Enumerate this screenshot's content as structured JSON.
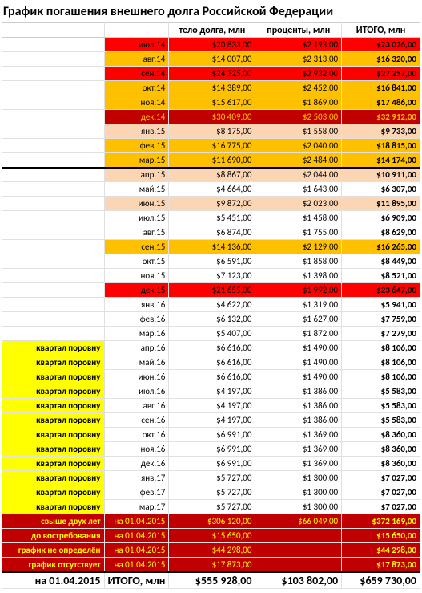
{
  "title": "График погашения внешнего долга Российской Федерации",
  "headers": {
    "principal": "тело долга, млн",
    "interest": "проценты, млн",
    "total": "ИТОГО, млн"
  },
  "colors": {
    "red": "#ff0000",
    "darkred": "#c00000",
    "orange": "#ffc000",
    "lightorange": "#fcd5b4",
    "yellow": "#ffff00",
    "white": "#ffffff",
    "black": "#000000"
  },
  "rows": [
    {
      "a": "",
      "b": "июл.14",
      "c": "$20 833,00",
      "d": "$2 193,00",
      "e": "$23 026,00",
      "bgA": "#ffffff",
      "bgB": "#ff0000",
      "bgC": "#ff0000",
      "bgD": "#ff0000",
      "bgE": "#ff0000",
      "txtA": "#000",
      "txtB": "#000",
      "txtC": "#000",
      "txtD": "#000",
      "txtE": "#000"
    },
    {
      "a": "",
      "b": "авг.14",
      "c": "$14 007,00",
      "d": "$2 313,00",
      "e": "$16 320,00",
      "bgA": "#ffffff",
      "bgB": "#ffc000",
      "bgC": "#ffc000",
      "bgD": "#ffc000",
      "bgE": "#ffc000",
      "txtA": "#000",
      "txtB": "#000",
      "txtC": "#000",
      "txtD": "#000",
      "txtE": "#000"
    },
    {
      "a": "",
      "b": "сен.14",
      "c": "$24 325,00",
      "d": "$2 932,00",
      "e": "$27 257,00",
      "bgA": "#ffffff",
      "bgB": "#ff0000",
      "bgC": "#ff0000",
      "bgD": "#ff0000",
      "bgE": "#ff0000",
      "txtA": "#000",
      "txtB": "#000",
      "txtC": "#000",
      "txtD": "#000",
      "txtE": "#000"
    },
    {
      "a": "",
      "b": "окт.14",
      "c": "$14 389,00",
      "d": "$2 452,00",
      "e": "$16 841,00",
      "bgA": "#ffffff",
      "bgB": "#ffc000",
      "bgC": "#ffc000",
      "bgD": "#ffc000",
      "bgE": "#ffc000",
      "txtA": "#000",
      "txtB": "#000",
      "txtC": "#000",
      "txtD": "#000",
      "txtE": "#000"
    },
    {
      "a": "",
      "b": "ноя.14",
      "c": "$15 617,00",
      "d": "$1 869,00",
      "e": "$17 486,00",
      "bgA": "#ffffff",
      "bgB": "#ffc000",
      "bgC": "#ffc000",
      "bgD": "#ffc000",
      "bgE": "#ffc000",
      "txtA": "#000",
      "txtB": "#000",
      "txtC": "#000",
      "txtD": "#000",
      "txtE": "#000"
    },
    {
      "a": "",
      "b": "дек.14",
      "c": "$30 409,00",
      "d": "$2 503,00",
      "e": "$32 912,00",
      "bgA": "#ffffff",
      "bgB": "#c00000",
      "bgC": "#c00000",
      "bgD": "#c00000",
      "bgE": "#c00000",
      "txtA": "#000",
      "txtB": "#ffc000",
      "txtC": "#ffc000",
      "txtD": "#ffc000",
      "txtE": "#ffc000"
    },
    {
      "a": "",
      "b": "янв.15",
      "c": "$8 175,00",
      "d": "$1 558,00",
      "e": "$9 733,00",
      "bgA": "#ffffff",
      "bgB": "#fcd5b4",
      "bgC": "#fcd5b4",
      "bgD": "#fcd5b4",
      "bgE": "#fcd5b4",
      "txtA": "#000",
      "txtB": "#000",
      "txtC": "#000",
      "txtD": "#000",
      "txtE": "#000"
    },
    {
      "a": "",
      "b": "фев.15",
      "c": "$16 775,00",
      "d": "$2 040,00",
      "e": "$18 815,00",
      "bgA": "#ffffff",
      "bgB": "#ffc000",
      "bgC": "#ffc000",
      "bgD": "#ffc000",
      "bgE": "#ffc000",
      "txtA": "#000",
      "txtB": "#000",
      "txtC": "#000",
      "txtD": "#000",
      "txtE": "#000"
    },
    {
      "a": "",
      "b": "мар.15",
      "c": "$11 690,00",
      "d": "$2 484,00",
      "e": "$14 174,00",
      "bgA": "#ffffff",
      "bgB": "#ffc000",
      "bgC": "#ffc000",
      "bgD": "#ffc000",
      "bgE": "#ffc000",
      "txtA": "#000",
      "txtB": "#000",
      "txtC": "#000",
      "txtD": "#000",
      "txtE": "#000",
      "sep": true
    },
    {
      "a": "",
      "b": "апр.15",
      "c": "$8 867,00",
      "d": "$2 044,00",
      "e": "$10 911,00",
      "bgA": "#ffffff",
      "bgB": "#fcd5b4",
      "bgC": "#fcd5b4",
      "bgD": "#fcd5b4",
      "bgE": "#fcd5b4",
      "txtA": "#000",
      "txtB": "#000",
      "txtC": "#000",
      "txtD": "#000",
      "txtE": "#000"
    },
    {
      "a": "",
      "b": "май.15",
      "c": "$4 664,00",
      "d": "$1 643,00",
      "e": "$6 307,00",
      "bgA": "#ffffff",
      "bgB": "#ffffff",
      "bgC": "#ffffff",
      "bgD": "#ffffff",
      "bgE": "#ffffff",
      "txtA": "#000",
      "txtB": "#000",
      "txtC": "#000",
      "txtD": "#000",
      "txtE": "#000"
    },
    {
      "a": "",
      "b": "июн.15",
      "c": "$9 872,00",
      "d": "$2 023,00",
      "e": "$11 895,00",
      "bgA": "#ffffff",
      "bgB": "#fcd5b4",
      "bgC": "#fcd5b4",
      "bgD": "#fcd5b4",
      "bgE": "#fcd5b4",
      "txtA": "#000",
      "txtB": "#000",
      "txtC": "#000",
      "txtD": "#000",
      "txtE": "#000"
    },
    {
      "a": "",
      "b": "июл.15",
      "c": "$5 451,00",
      "d": "$1 458,00",
      "e": "$6 909,00",
      "bgA": "#ffffff",
      "bgB": "#ffffff",
      "bgC": "#ffffff",
      "bgD": "#ffffff",
      "bgE": "#ffffff",
      "txtA": "#000",
      "txtB": "#000",
      "txtC": "#000",
      "txtD": "#000",
      "txtE": "#000"
    },
    {
      "a": "",
      "b": "авг.15",
      "c": "$6 874,00",
      "d": "$1 755,00",
      "e": "$8 629,00",
      "bgA": "#ffffff",
      "bgB": "#ffffff",
      "bgC": "#ffffff",
      "bgD": "#ffffff",
      "bgE": "#ffffff",
      "txtA": "#000",
      "txtB": "#000",
      "txtC": "#000",
      "txtD": "#000",
      "txtE": "#000"
    },
    {
      "a": "",
      "b": "сен.15",
      "c": "$14 136,00",
      "d": "$2 129,00",
      "e": "$16 265,00",
      "bgA": "#ffffff",
      "bgB": "#ffc000",
      "bgC": "#ffc000",
      "bgD": "#ffc000",
      "bgE": "#ffc000",
      "txtA": "#000",
      "txtB": "#000",
      "txtC": "#000",
      "txtD": "#000",
      "txtE": "#000"
    },
    {
      "a": "",
      "b": "окт.15",
      "c": "$6 591,00",
      "d": "$1 858,00",
      "e": "$8 449,00",
      "bgA": "#ffffff",
      "bgB": "#ffffff",
      "bgC": "#ffffff",
      "bgD": "#ffffff",
      "bgE": "#ffffff",
      "txtA": "#000",
      "txtB": "#000",
      "txtC": "#000",
      "txtD": "#000",
      "txtE": "#000"
    },
    {
      "a": "",
      "b": "ноя.15",
      "c": "$7 123,00",
      "d": "$1 398,00",
      "e": "$8 521,00",
      "bgA": "#ffffff",
      "bgB": "#ffffff",
      "bgC": "#ffffff",
      "bgD": "#ffffff",
      "bgE": "#ffffff",
      "txtA": "#000",
      "txtB": "#000",
      "txtC": "#000",
      "txtD": "#000",
      "txtE": "#000"
    },
    {
      "a": "",
      "b": "дек.15",
      "c": "$21 655,00",
      "d": "$1 992,00",
      "e": "$23 647,00",
      "bgA": "#ffffff",
      "bgB": "#ff0000",
      "bgC": "#ff0000",
      "bgD": "#ff0000",
      "bgE": "#ff0000",
      "txtA": "#000",
      "txtB": "#000",
      "txtC": "#000",
      "txtD": "#000",
      "txtE": "#000"
    },
    {
      "a": "",
      "b": "янв.16",
      "c": "$4 622,00",
      "d": "$1 319,00",
      "e": "$5 941,00",
      "bgA": "#ffffff",
      "bgB": "#ffffff",
      "bgC": "#ffffff",
      "bgD": "#ffffff",
      "bgE": "#ffffff",
      "txtA": "#000",
      "txtB": "#000",
      "txtC": "#000",
      "txtD": "#000",
      "txtE": "#000"
    },
    {
      "a": "",
      "b": "фев.16",
      "c": "$6 132,00",
      "d": "$1 627,00",
      "e": "$7 759,00",
      "bgA": "#ffffff",
      "bgB": "#ffffff",
      "bgC": "#ffffff",
      "bgD": "#ffffff",
      "bgE": "#ffffff",
      "txtA": "#000",
      "txtB": "#000",
      "txtC": "#000",
      "txtD": "#000",
      "txtE": "#000"
    },
    {
      "a": "",
      "b": "мар.16",
      "c": "$5 407,00",
      "d": "$1 872,00",
      "e": "$7 279,00",
      "bgA": "#ffffff",
      "bgB": "#ffffff",
      "bgC": "#ffffff",
      "bgD": "#ffffff",
      "bgE": "#ffffff",
      "txtA": "#000",
      "txtB": "#000",
      "txtC": "#000",
      "txtD": "#000",
      "txtE": "#000"
    },
    {
      "a": "квартал поровну",
      "b": "апр.16",
      "c": "$6 616,00",
      "d": "$1 490,00",
      "e": "$8 106,00",
      "bgA": "#ffff00",
      "bgB": "#ffffff",
      "bgC": "#ffffff",
      "bgD": "#ffffff",
      "bgE": "#ffffff",
      "txtA": "#000",
      "txtB": "#000",
      "txtC": "#000",
      "txtD": "#000",
      "txtE": "#000"
    },
    {
      "a": "квартал поровну",
      "b": "май.16",
      "c": "$6 616,00",
      "d": "$1 490,00",
      "e": "$8 106,00",
      "bgA": "#ffff00",
      "bgB": "#ffffff",
      "bgC": "#ffffff",
      "bgD": "#ffffff",
      "bgE": "#ffffff",
      "txtA": "#000",
      "txtB": "#000",
      "txtC": "#000",
      "txtD": "#000",
      "txtE": "#000"
    },
    {
      "a": "квартал поровну",
      "b": "июн.16",
      "c": "$6 616,00",
      "d": "$1 490,00",
      "e": "$8 106,00",
      "bgA": "#ffff00",
      "bgB": "#ffffff",
      "bgC": "#ffffff",
      "bgD": "#ffffff",
      "bgE": "#ffffff",
      "txtA": "#000",
      "txtB": "#000",
      "txtC": "#000",
      "txtD": "#000",
      "txtE": "#000"
    },
    {
      "a": "квартал поровну",
      "b": "июл.16",
      "c": "$4 197,00",
      "d": "$1 386,00",
      "e": "$5 583,00",
      "bgA": "#ffff00",
      "bgB": "#ffffff",
      "bgC": "#ffffff",
      "bgD": "#ffffff",
      "bgE": "#ffffff",
      "txtA": "#000",
      "txtB": "#000",
      "txtC": "#000",
      "txtD": "#000",
      "txtE": "#000"
    },
    {
      "a": "квартал поровну",
      "b": "авг.16",
      "c": "$4 197,00",
      "d": "$1 386,00",
      "e": "$5 583,00",
      "bgA": "#ffff00",
      "bgB": "#ffffff",
      "bgC": "#ffffff",
      "bgD": "#ffffff",
      "bgE": "#ffffff",
      "txtA": "#000",
      "txtB": "#000",
      "txtC": "#000",
      "txtD": "#000",
      "txtE": "#000"
    },
    {
      "a": "квартал поровну",
      "b": "сен.16",
      "c": "$4 197,00",
      "d": "$1 386,00",
      "e": "$5 583,00",
      "bgA": "#ffff00",
      "bgB": "#ffffff",
      "bgC": "#ffffff",
      "bgD": "#ffffff",
      "bgE": "#ffffff",
      "txtA": "#000",
      "txtB": "#000",
      "txtC": "#000",
      "txtD": "#000",
      "txtE": "#000"
    },
    {
      "a": "квартал поровну",
      "b": "окт.16",
      "c": "$6 991,00",
      "d": "$1 369,00",
      "e": "$8 360,00",
      "bgA": "#ffff00",
      "bgB": "#ffffff",
      "bgC": "#ffffff",
      "bgD": "#ffffff",
      "bgE": "#ffffff",
      "txtA": "#000",
      "txtB": "#000",
      "txtC": "#000",
      "txtD": "#000",
      "txtE": "#000"
    },
    {
      "a": "квартал поровну",
      "b": "ноя.16",
      "c": "$6 991,00",
      "d": "$1 369,00",
      "e": "$8 360,00",
      "bgA": "#ffff00",
      "bgB": "#ffffff",
      "bgC": "#ffffff",
      "bgD": "#ffffff",
      "bgE": "#ffffff",
      "txtA": "#000",
      "txtB": "#000",
      "txtC": "#000",
      "txtD": "#000",
      "txtE": "#000"
    },
    {
      "a": "квартал поровну",
      "b": "дек.16",
      "c": "$6 991,00",
      "d": "$1 369,00",
      "e": "$8 360,00",
      "bgA": "#ffff00",
      "bgB": "#ffffff",
      "bgC": "#ffffff",
      "bgD": "#ffffff",
      "bgE": "#ffffff",
      "txtA": "#000",
      "txtB": "#000",
      "txtC": "#000",
      "txtD": "#000",
      "txtE": "#000"
    },
    {
      "a": "квартал поровну",
      "b": "янв.17",
      "c": "$5 727,00",
      "d": "$1 300,00",
      "e": "$7 027,00",
      "bgA": "#ffff00",
      "bgB": "#ffffff",
      "bgC": "#ffffff",
      "bgD": "#ffffff",
      "bgE": "#ffffff",
      "txtA": "#000",
      "txtB": "#000",
      "txtC": "#000",
      "txtD": "#000",
      "txtE": "#000"
    },
    {
      "a": "квартал поровну",
      "b": "фев.17",
      "c": "$5 727,00",
      "d": "$1 300,00",
      "e": "$7 027,00",
      "bgA": "#ffff00",
      "bgB": "#ffffff",
      "bgC": "#ffffff",
      "bgD": "#ffffff",
      "bgE": "#ffffff",
      "txtA": "#000",
      "txtB": "#000",
      "txtC": "#000",
      "txtD": "#000",
      "txtE": "#000"
    },
    {
      "a": "квартал поровну",
      "b": "мар.17",
      "c": "$5 727,00",
      "d": "$1 300,00",
      "e": "$7 027,00",
      "bgA": "#ffff00",
      "bgB": "#ffffff",
      "bgC": "#ffffff",
      "bgD": "#ffffff",
      "bgE": "#ffffff",
      "txtA": "#000",
      "txtB": "#000",
      "txtC": "#000",
      "txtD": "#000",
      "txtE": "#000"
    },
    {
      "a": "свыше двух лет",
      "b": "на 01.04.2015",
      "c": "$306 120,00",
      "d": "$66 049,00",
      "e": "$372 169,00",
      "bgA": "#c00000",
      "bgB": "#c00000",
      "bgC": "#c00000",
      "bgD": "#c00000",
      "bgE": "#c00000",
      "txtA": "#ffff00",
      "txtB": "#ffff00",
      "txtC": "#ffff00",
      "txtD": "#ffff00",
      "txtE": "#ffff00"
    },
    {
      "a": "до востребования",
      "b": "на 01.04.2015",
      "c": "$15 650,00",
      "d": "",
      "e": "$15 650,00",
      "bgA": "#c00000",
      "bgB": "#c00000",
      "bgC": "#c00000",
      "bgD": "#c00000",
      "bgE": "#c00000",
      "txtA": "#ffff00",
      "txtB": "#ffff00",
      "txtC": "#ffff00",
      "txtD": "#ffff00",
      "txtE": "#ffff00"
    },
    {
      "a": "график не определён",
      "b": "на 01.04.2015",
      "c": "$44 298,00",
      "d": "",
      "e": "$44 298,00",
      "bgA": "#c00000",
      "bgB": "#c00000",
      "bgC": "#c00000",
      "bgD": "#c00000",
      "bgE": "#c00000",
      "txtA": "#ffff00",
      "txtB": "#ffff00",
      "txtC": "#ffff00",
      "txtD": "#ffff00",
      "txtE": "#ffff00"
    },
    {
      "a": "график отсутствует",
      "b": "на 01.04.2015",
      "c": "$17 873,00",
      "d": "",
      "e": "$17 873,00",
      "bgA": "#c00000",
      "bgB": "#c00000",
      "bgC": "#c00000",
      "bgD": "#c00000",
      "bgE": "#c00000",
      "txtA": "#ffff00",
      "txtB": "#ffff00",
      "txtC": "#ffff00",
      "txtD": "#ffff00",
      "txtE": "#ffff00"
    }
  ],
  "totals": {
    "label": "на 01.04.2015",
    "b": "ИТОГО, млн",
    "c": "$555 928,00",
    "d": "$103 802,00",
    "e": "$659 730,00"
  }
}
